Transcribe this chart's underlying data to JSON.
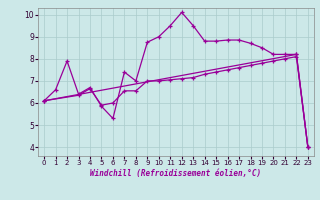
{
  "bg_color": "#cce8e8",
  "line_color": "#990099",
  "grid_color": "#aacccc",
  "xlabel": "Windchill (Refroidissement éolien,°C)",
  "xlim": [
    -0.5,
    23.5
  ],
  "ylim": [
    3.6,
    10.3
  ],
  "yticks": [
    4,
    5,
    6,
    7,
    8,
    9,
    10
  ],
  "xticks": [
    0,
    1,
    2,
    3,
    4,
    5,
    6,
    7,
    8,
    9,
    10,
    11,
    12,
    13,
    14,
    15,
    16,
    17,
    18,
    19,
    20,
    21,
    22,
    23
  ],
  "line1_x": [
    0,
    1,
    2,
    3,
    4,
    5,
    6,
    7,
    8,
    9,
    10,
    11,
    12,
    13,
    14,
    15,
    16,
    17,
    18,
    19,
    20,
    21,
    22,
    23
  ],
  "line1_y": [
    6.1,
    6.6,
    7.9,
    6.4,
    6.7,
    5.85,
    5.3,
    7.4,
    7.0,
    8.75,
    9.0,
    9.5,
    10.1,
    9.5,
    8.8,
    8.8,
    8.85,
    8.85,
    8.7,
    8.5,
    8.2,
    8.2,
    8.2,
    4.0
  ],
  "line2_x": [
    0,
    3,
    4,
    5,
    6,
    7,
    8,
    9,
    10,
    11,
    12,
    13,
    14,
    15,
    16,
    17,
    18,
    19,
    20,
    21,
    22,
    23
  ],
  "line2_y": [
    6.1,
    6.35,
    6.65,
    5.9,
    6.0,
    6.55,
    6.55,
    7.0,
    7.0,
    7.05,
    7.1,
    7.15,
    7.3,
    7.4,
    7.5,
    7.6,
    7.7,
    7.8,
    7.9,
    8.0,
    8.1,
    4.0
  ],
  "line3_x": [
    0,
    22,
    23
  ],
  "line3_y": [
    6.1,
    8.2,
    4.0
  ]
}
